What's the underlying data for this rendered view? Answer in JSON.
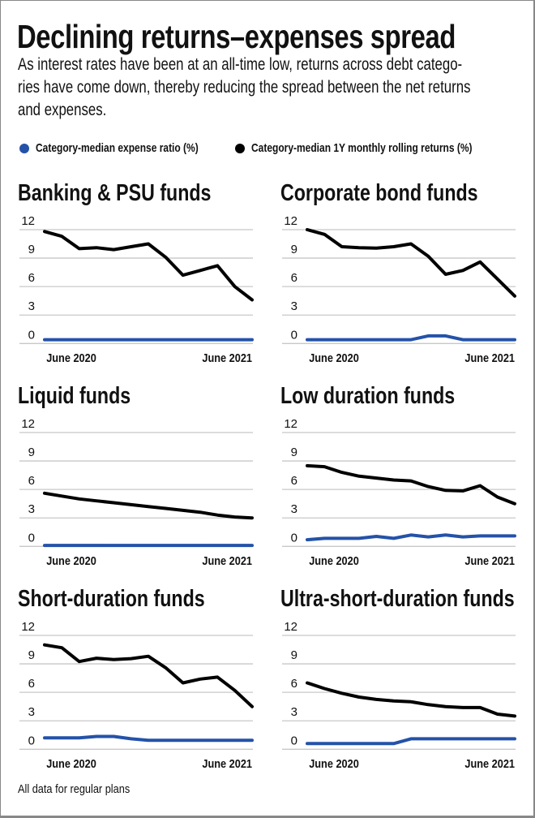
{
  "header": {
    "title": "Declining returns–expenses spread",
    "subtitle_lines": [
      "As interest rates have been at an all-time low, returns across debt catego-",
      "ries have come down, thereby reducing the spread between the net returns",
      "and expenses."
    ]
  },
  "legend": [
    {
      "label": "Category-median expense ratio (%)",
      "color": "#2452a8"
    },
    {
      "label": "Category-median 1Y monthly rolling returns (%)",
      "color": "#000000"
    }
  ],
  "footnote": "All data for regular plans",
  "chart_data": [
    {
      "type": "line",
      "title": "Banking & PSU funds",
      "x_tick_labels": [
        "June 2020",
        "June 2021"
      ],
      "y_ticks": [
        0,
        3,
        6,
        9,
        12
      ],
      "ylim": [
        0,
        12
      ],
      "grid": true,
      "series": [
        {
          "name": "Category-median expense ratio (%)",
          "values": [
            0.4,
            0.4,
            0.4,
            0.4,
            0.4,
            0.4,
            0.4,
            0.4,
            0.4,
            0.4,
            0.4,
            0.4,
            0.4
          ]
        },
        {
          "name": "Category-median 1Y monthly rolling returns (%)",
          "values": [
            11.8,
            11.3,
            10.0,
            10.1,
            9.9,
            10.2,
            10.5,
            9.1,
            7.2,
            7.7,
            8.2,
            6.0,
            4.6
          ]
        }
      ]
    },
    {
      "type": "line",
      "title": "Corporate bond funds",
      "x_tick_labels": [
        "June 2020",
        "June 2021"
      ],
      "y_ticks": [
        0,
        3,
        6,
        9,
        12
      ],
      "ylim": [
        0,
        12
      ],
      "grid": true,
      "series": [
        {
          "name": "Category-median expense ratio (%)",
          "values": [
            0.4,
            0.4,
            0.4,
            0.4,
            0.4,
            0.4,
            0.4,
            0.8,
            0.8,
            0.4,
            0.4,
            0.4,
            0.4
          ]
        },
        {
          "name": "Category-median 1Y monthly rolling returns (%)",
          "values": [
            12.0,
            11.5,
            10.2,
            10.1,
            10.05,
            10.2,
            10.5,
            9.2,
            7.3,
            7.7,
            8.6,
            6.8,
            5.0
          ]
        }
      ]
    },
    {
      "type": "line",
      "title": "Liquid funds",
      "x_tick_labels": [
        "June 2020",
        "June 2021"
      ],
      "y_ticks": [
        0,
        3,
        6,
        9,
        12
      ],
      "ylim": [
        0,
        12
      ],
      "grid": true,
      "series": [
        {
          "name": "Category-median expense ratio (%)",
          "values": [
            0.1,
            0.1,
            0.1,
            0.1,
            0.1,
            0.1,
            0.1,
            0.1,
            0.1,
            0.1,
            0.1,
            0.1,
            0.1
          ]
        },
        {
          "name": "Category-median 1Y monthly rolling returns (%)",
          "values": [
            5.6,
            5.3,
            5.0,
            4.8,
            4.6,
            4.4,
            4.2,
            4.0,
            3.8,
            3.6,
            3.3,
            3.1,
            3.0
          ]
        }
      ]
    },
    {
      "type": "line",
      "title": "Low duration funds",
      "x_tick_labels": [
        "June 2020",
        "June 2021"
      ],
      "y_ticks": [
        0,
        3,
        6,
        9,
        12
      ],
      "ylim": [
        0,
        12
      ],
      "grid": true,
      "series": [
        {
          "name": "Category-median expense ratio (%)",
          "values": [
            0.7,
            0.85,
            0.85,
            0.85,
            1.05,
            0.85,
            1.2,
            1.0,
            1.2,
            1.0,
            1.1,
            1.1,
            1.1
          ]
        },
        {
          "name": "Category-median 1Y monthly rolling returns (%)",
          "values": [
            8.5,
            8.4,
            7.8,
            7.4,
            7.2,
            7.0,
            6.9,
            6.3,
            5.9,
            5.85,
            6.4,
            5.2,
            4.5
          ]
        }
      ]
    },
    {
      "type": "line",
      "title": "Short-duration funds",
      "x_tick_labels": [
        "June 2020",
        "June 2021"
      ],
      "y_ticks": [
        0,
        3,
        6,
        9,
        12
      ],
      "ylim": [
        0,
        12
      ],
      "grid": true,
      "series": [
        {
          "name": "Category-median expense ratio (%)",
          "values": [
            1.2,
            1.2,
            1.2,
            1.35,
            1.35,
            1.1,
            0.95,
            0.95,
            0.95,
            0.95,
            0.95,
            0.95,
            0.95
          ]
        },
        {
          "name": "Category-median 1Y monthly rolling returns (%)",
          "values": [
            11.0,
            10.7,
            9.25,
            9.6,
            9.45,
            9.55,
            9.8,
            8.6,
            7.0,
            7.4,
            7.6,
            6.2,
            4.5
          ]
        }
      ]
    },
    {
      "type": "line",
      "title": "Ultra-short-duration funds",
      "x_tick_labels": [
        "June 2020",
        "June 2021"
      ],
      "y_ticks": [
        0,
        3,
        6,
        9,
        12
      ],
      "ylim": [
        0,
        12
      ],
      "grid": true,
      "series": [
        {
          "name": "Category-median expense ratio (%)",
          "values": [
            0.6,
            0.6,
            0.6,
            0.6,
            0.6,
            0.6,
            1.1,
            1.1,
            1.1,
            1.1,
            1.1,
            1.1,
            1.1
          ]
        },
        {
          "name": "Category-median 1Y monthly rolling returns (%)",
          "values": [
            7.0,
            6.4,
            5.9,
            5.5,
            5.25,
            5.1,
            5.0,
            4.7,
            4.5,
            4.4,
            4.4,
            3.7,
            3.5
          ]
        }
      ]
    }
  ]
}
